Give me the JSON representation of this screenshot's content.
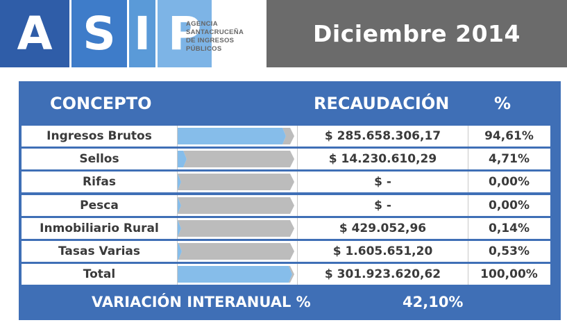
{
  "logo": {
    "letters": [
      "A",
      "S",
      "I",
      "P"
    ],
    "agency_lines": [
      "AGENCIA",
      "SANTACRUCEÑA",
      "DE INGRESOS",
      "PÚBLICOS"
    ]
  },
  "header": {
    "period": "Diciembre 2014"
  },
  "table": {
    "headers": {
      "concept": "CONCEPTO",
      "amount": "RECAUDACIÓN",
      "percent": "%"
    },
    "rows": [
      {
        "concept": "Ingresos Brutos",
        "amount": "$ 285.658.306,17",
        "percent": "94,61%",
        "share": 0.9461
      },
      {
        "concept": "Sellos",
        "amount": "$ 14.230.610,29",
        "percent": "4,71%",
        "share": 0.0471
      },
      {
        "concept": "Rifas",
        "amount": "$ -",
        "percent": "0,00%",
        "share": 0.0
      },
      {
        "concept": "Pesca",
        "amount": "$ -",
        "percent": "0,00%",
        "share": 0.0
      },
      {
        "concept": "Inmobiliario Rural",
        "amount": "$ 429.052,96",
        "percent": "0,14%",
        "share": 0.0014
      },
      {
        "concept": "Tasas Varias",
        "amount": "$ 1.605.651,20",
        "percent": "0,53%",
        "share": 0.0053
      },
      {
        "concept": "Total",
        "amount": "$ 301.923.620,62",
        "percent": "100,00%",
        "share": 1.0
      }
    ],
    "footer": {
      "label": "VARIACIÓN INTERANUAL %",
      "value": "42,10%"
    }
  },
  "colors": {
    "brand_blue": "#3f6fb6",
    "bar_blue": "#86bdea",
    "bar_gray": "#bcbcbc",
    "header_gray": "#6b6b6b"
  }
}
